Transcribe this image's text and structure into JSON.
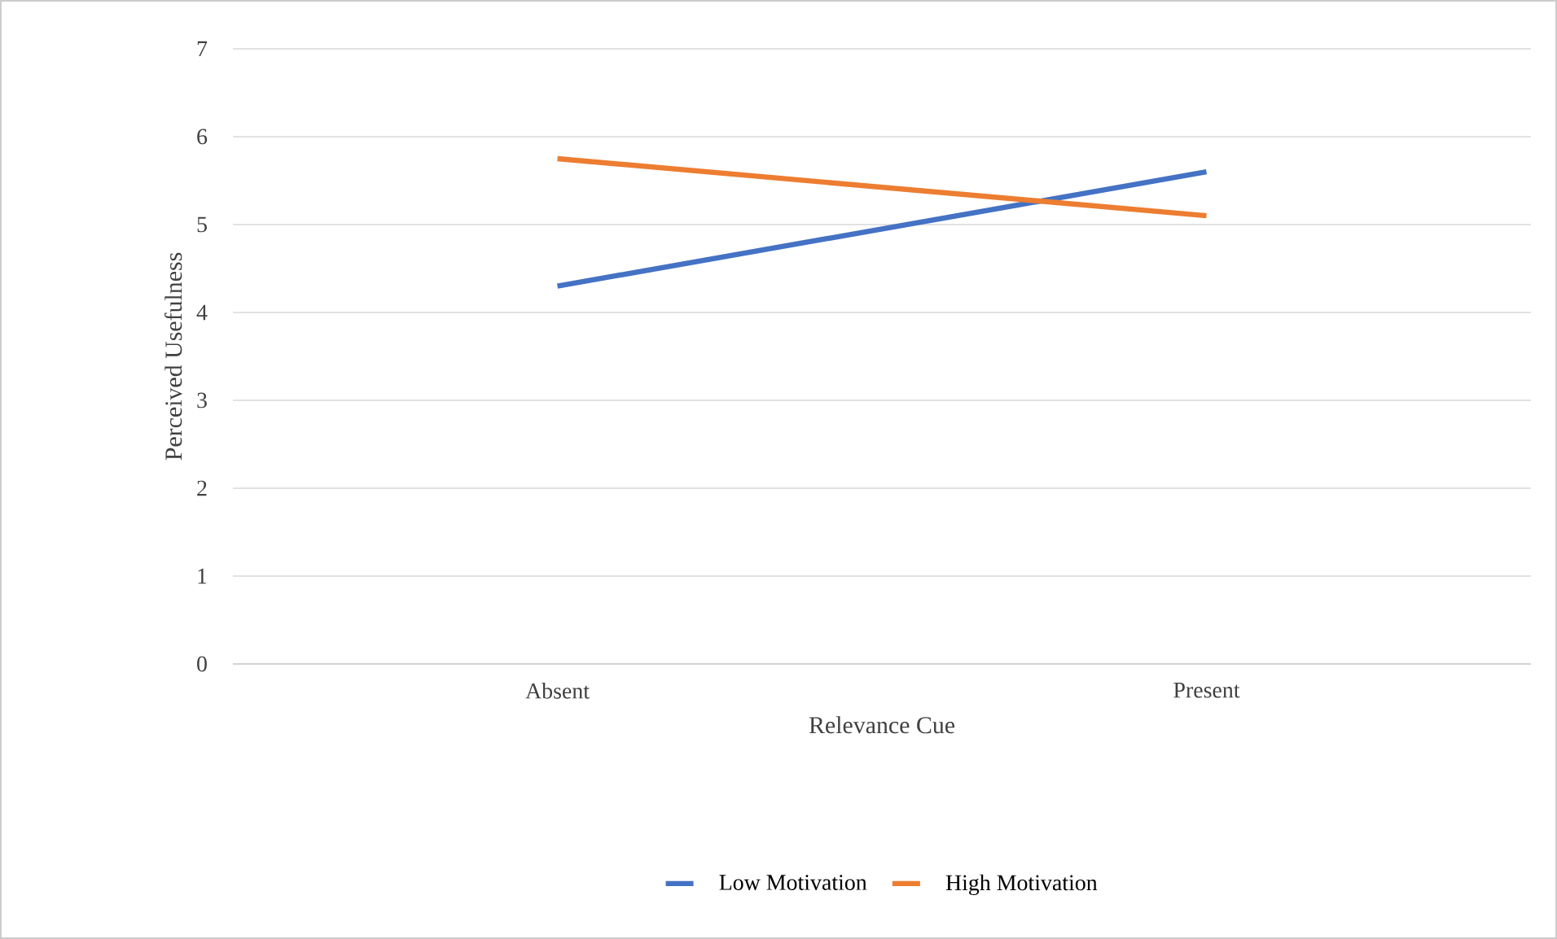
{
  "chart_data": {
    "type": "line",
    "xlabel": "Relevance Cue",
    "ylabel": "Perceived Usefulness",
    "categories": [
      "Absent",
      "Present"
    ],
    "series": [
      {
        "name": "Low Motivation",
        "color": "#4472c4",
        "values": [
          4.3,
          5.6
        ]
      },
      {
        "name": "High Motivation",
        "color": "#ed7d31",
        "values": [
          5.75,
          5.1
        ]
      }
    ],
    "ylim": [
      0,
      7
    ],
    "yticks": [
      0,
      1,
      2,
      3,
      4,
      5,
      6,
      7
    ],
    "grid": "y",
    "legend": "bottom",
    "marker": "none",
    "line_style": "solid"
  }
}
